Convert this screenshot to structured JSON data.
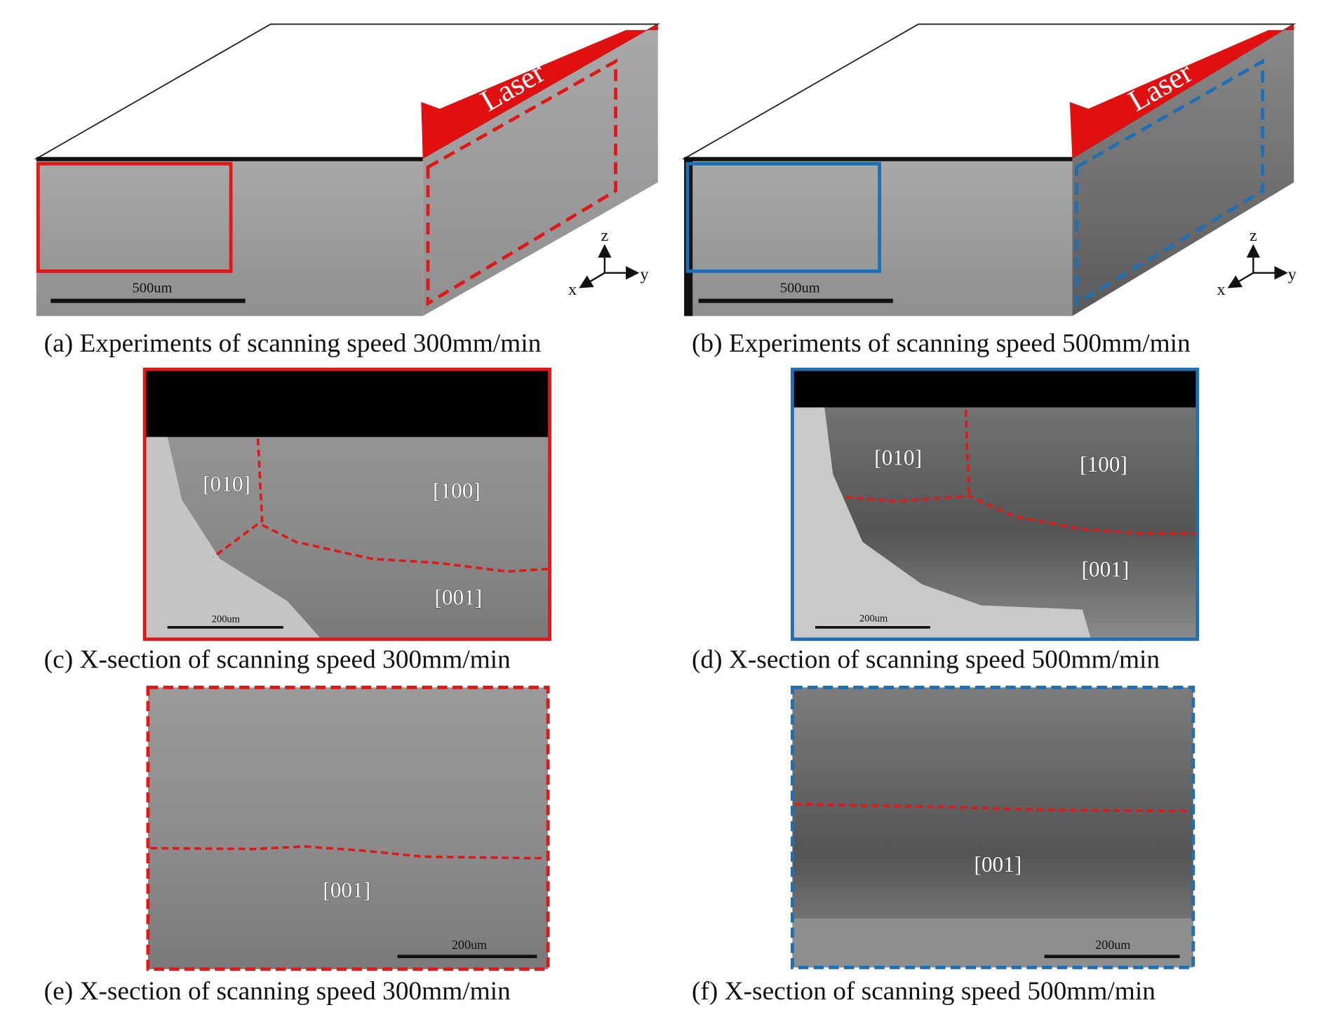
{
  "panels": [
    {
      "caption": "(a) Experiments of scanning speed 300mm/min",
      "laser": "Laser",
      "scale_bar": "500um",
      "axes": [
        "z",
        "y",
        "x"
      ]
    },
    {
      "caption": "(b) Experiments of scanning speed 500mm/min",
      "laser": "Laser",
      "scale_bar": "500um",
      "axes": [
        "z",
        "y",
        "x"
      ]
    },
    {
      "caption": "(c) X-section of scanning speed 300mm/min",
      "labels": [
        "[010]",
        "[100]",
        "[001]"
      ],
      "scale_bar": "200um"
    },
    {
      "caption": "(d) X-section of scanning speed 500mm/min",
      "labels": [
        "[010]",
        "[100]",
        "[001]"
      ],
      "scale_bar": "200um"
    },
    {
      "caption": "(e) X-section of scanning speed 300mm/min",
      "labels": [
        "[001]"
      ],
      "scale_bar": "200um"
    },
    {
      "caption": "(f) X-section of scanning speed 500mm/min",
      "labels": [
        "[001]"
      ],
      "scale_bar": "200um"
    }
  ]
}
